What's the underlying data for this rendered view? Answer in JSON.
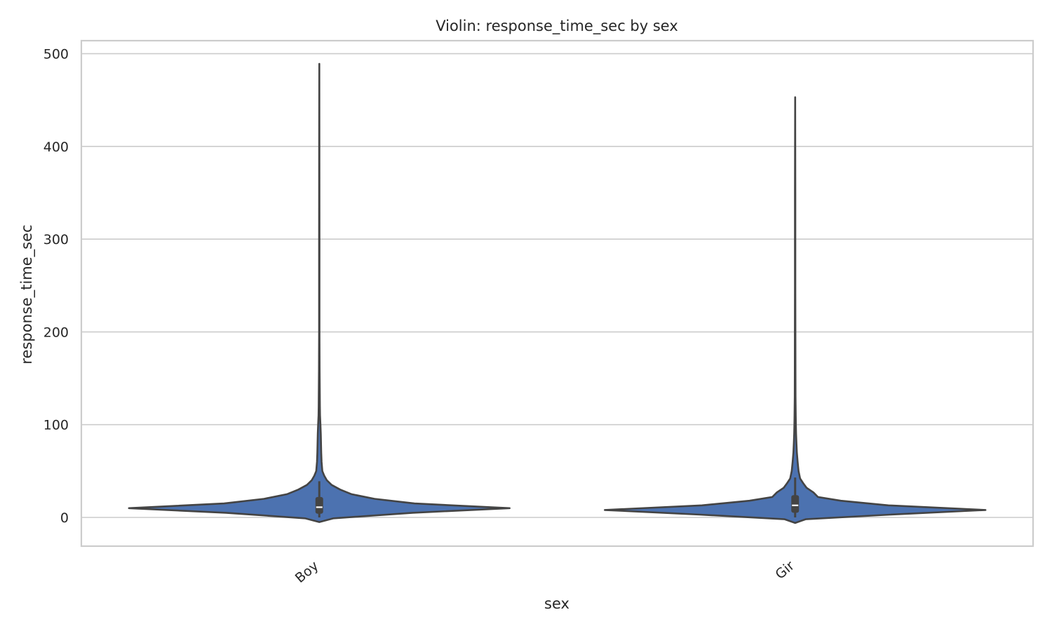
{
  "chart_data": {
    "type": "violin",
    "title": "Violin: response_time_sec by sex",
    "xlabel": "sex",
    "ylabel": "response_time_sec",
    "ylim": [
      -31,
      514
    ],
    "yticks": [
      0,
      100,
      200,
      300,
      400,
      500
    ],
    "grid": "horizontal",
    "color": "#4c72b0",
    "categories": [
      "Boy",
      "Gir"
    ],
    "violins": [
      {
        "category": "Boy",
        "min": -5,
        "max": 489,
        "q1": 4,
        "median": 11,
        "q3": 22,
        "whisker_low": 0,
        "whisker_high": 39,
        "density": [
          [
            -5,
            0.0
          ],
          [
            -1,
            0.075
          ],
          [
            5,
            0.49
          ],
          [
            10,
            1.0
          ],
          [
            15,
            0.5
          ],
          [
            20,
            0.29
          ],
          [
            25,
            0.17
          ],
          [
            30,
            0.11
          ],
          [
            35,
            0.065
          ],
          [
            40,
            0.04
          ],
          [
            45,
            0.026
          ],
          [
            50,
            0.016
          ],
          [
            60,
            0.012
          ],
          [
            70,
            0.01
          ],
          [
            80,
            0.009
          ],
          [
            90,
            0.008
          ],
          [
            100,
            0.006
          ],
          [
            110,
            0.004
          ],
          [
            120,
            0.003
          ],
          [
            140,
            0.0025
          ],
          [
            160,
            0.0015
          ],
          [
            200,
            0.001
          ],
          [
            300,
            0.0008
          ],
          [
            400,
            0.0006
          ],
          [
            489,
            0.0
          ]
        ]
      },
      {
        "category": "Gir",
        "min": -6,
        "max": 453,
        "q1": 5,
        "median": 13,
        "q3": 24,
        "whisker_low": 0,
        "whisker_high": 43,
        "density": [
          [
            -6,
            0.0
          ],
          [
            -2,
            0.055
          ],
          [
            3,
            0.5
          ],
          [
            8,
            1.0
          ],
          [
            13,
            0.49
          ],
          [
            18,
            0.24
          ],
          [
            22,
            0.12
          ],
          [
            27,
            0.096
          ],
          [
            32,
            0.06
          ],
          [
            37,
            0.042
          ],
          [
            42,
            0.026
          ],
          [
            50,
            0.018
          ],
          [
            60,
            0.013
          ],
          [
            70,
            0.009
          ],
          [
            80,
            0.007
          ],
          [
            90,
            0.005
          ],
          [
            100,
            0.004
          ],
          [
            110,
            0.003
          ],
          [
            130,
            0.002
          ],
          [
            160,
            0.0015
          ],
          [
            250,
            0.001
          ],
          [
            350,
            0.0008
          ],
          [
            453,
            0.0
          ]
        ]
      }
    ]
  }
}
